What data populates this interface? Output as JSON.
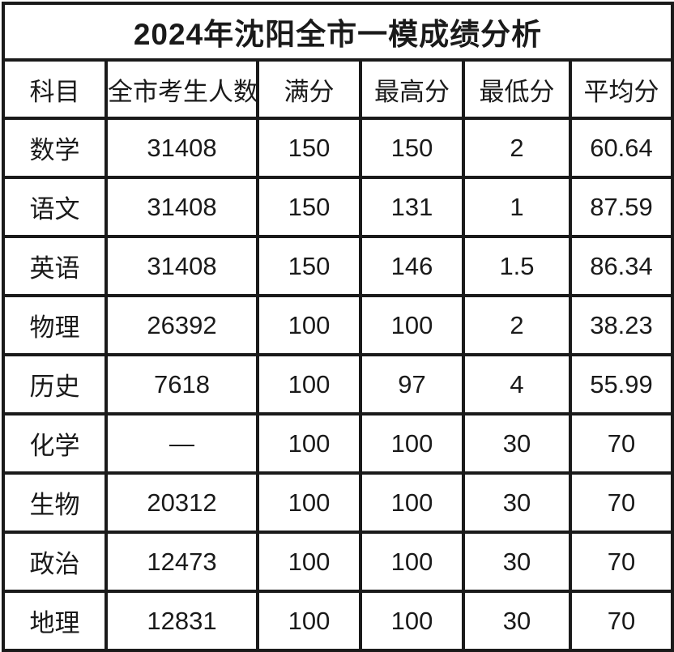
{
  "chart_data": {
    "type": "table",
    "title": "2024年沈阳全市一模成绩分析",
    "columns": [
      "科目",
      "全市考生人数",
      "满分",
      "最高分",
      "最低分",
      "平均分"
    ],
    "rows": [
      [
        "数学",
        "31408",
        "150",
        "150",
        "2",
        "60.64"
      ],
      [
        "语文",
        "31408",
        "150",
        "131",
        "1",
        "87.59"
      ],
      [
        "英语",
        "31408",
        "150",
        "146",
        "1.5",
        "86.34"
      ],
      [
        "物理",
        "26392",
        "100",
        "100",
        "2",
        "38.23"
      ],
      [
        "历史",
        "7618",
        "100",
        "97",
        "4",
        "55.99"
      ],
      [
        "化学",
        "—",
        "100",
        "100",
        "30",
        "70"
      ],
      [
        "生物",
        "20312",
        "100",
        "100",
        "30",
        "70"
      ],
      [
        "政治",
        "12473",
        "100",
        "100",
        "30",
        "70"
      ],
      [
        "地理",
        "12831",
        "100",
        "100",
        "30",
        "70"
      ]
    ]
  },
  "colors": {
    "background": "#ffffff",
    "border": "#1a1a1a",
    "text": "#1a1a1a"
  }
}
